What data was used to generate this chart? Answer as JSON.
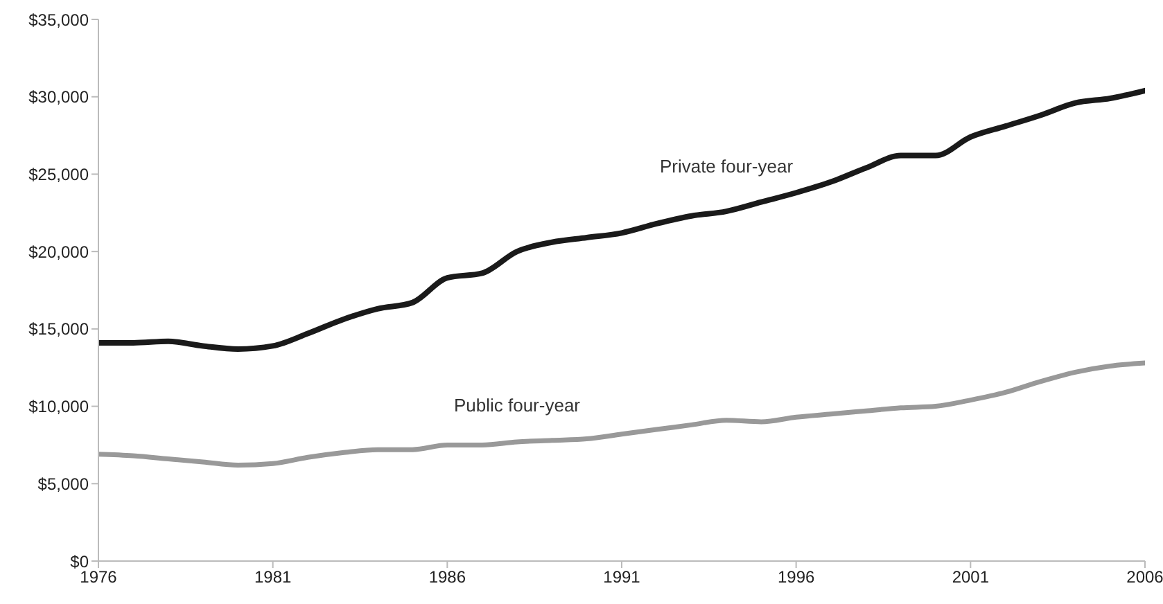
{
  "chart_data": {
    "type": "line",
    "x": [
      1976,
      1977,
      1978,
      1979,
      1980,
      1981,
      1982,
      1983,
      1984,
      1985,
      1986,
      1987,
      1988,
      1989,
      1990,
      1991,
      1992,
      1993,
      1994,
      1995,
      1996,
      1997,
      1998,
      1999,
      2000,
      2001,
      2002,
      2003,
      2004,
      2005,
      2006
    ],
    "series": [
      {
        "name": "Private four-year",
        "color": "#1a1a1a",
        "values": [
          14100,
          14100,
          14200,
          13900,
          13700,
          13900,
          14700,
          15600,
          16300,
          16700,
          18300,
          18600,
          20000,
          20600,
          20900,
          21200,
          21800,
          22300,
          22600,
          23200,
          23800,
          24500,
          25400,
          26200,
          26200,
          27400,
          28100,
          28800,
          29600,
          29900,
          30400
        ]
      },
      {
        "name": "Public four-year",
        "color": "#999999",
        "values": [
          6900,
          6800,
          6600,
          6400,
          6200,
          6300,
          6700,
          7000,
          7200,
          7200,
          7500,
          7500,
          7700,
          7800,
          7900,
          8200,
          8500,
          8800,
          9100,
          9000,
          9300,
          9500,
          9700,
          9900,
          10000,
          10400,
          10900,
          11600,
          12200,
          12600,
          12800
        ]
      }
    ],
    "xlim": [
      1976,
      2006
    ],
    "xticks": [
      1976,
      1981,
      1986,
      1991,
      1996,
      2001,
      2006
    ],
    "ylim": [
      0,
      35000
    ],
    "yticks": [
      {
        "value": 0,
        "label": "$0"
      },
      {
        "value": 5000,
        "label": "$5,000"
      },
      {
        "value": 10000,
        "label": "$10,000"
      },
      {
        "value": 15000,
        "label": "$15,000"
      },
      {
        "value": 20000,
        "label": "$20,000"
      },
      {
        "value": 25000,
        "label": "$25,000"
      },
      {
        "value": 30000,
        "label": "$30,000"
      },
      {
        "value": 35000,
        "label": "$35,000"
      }
    ],
    "grid": false,
    "legend": false,
    "marker": "none",
    "line_style": "solid"
  }
}
